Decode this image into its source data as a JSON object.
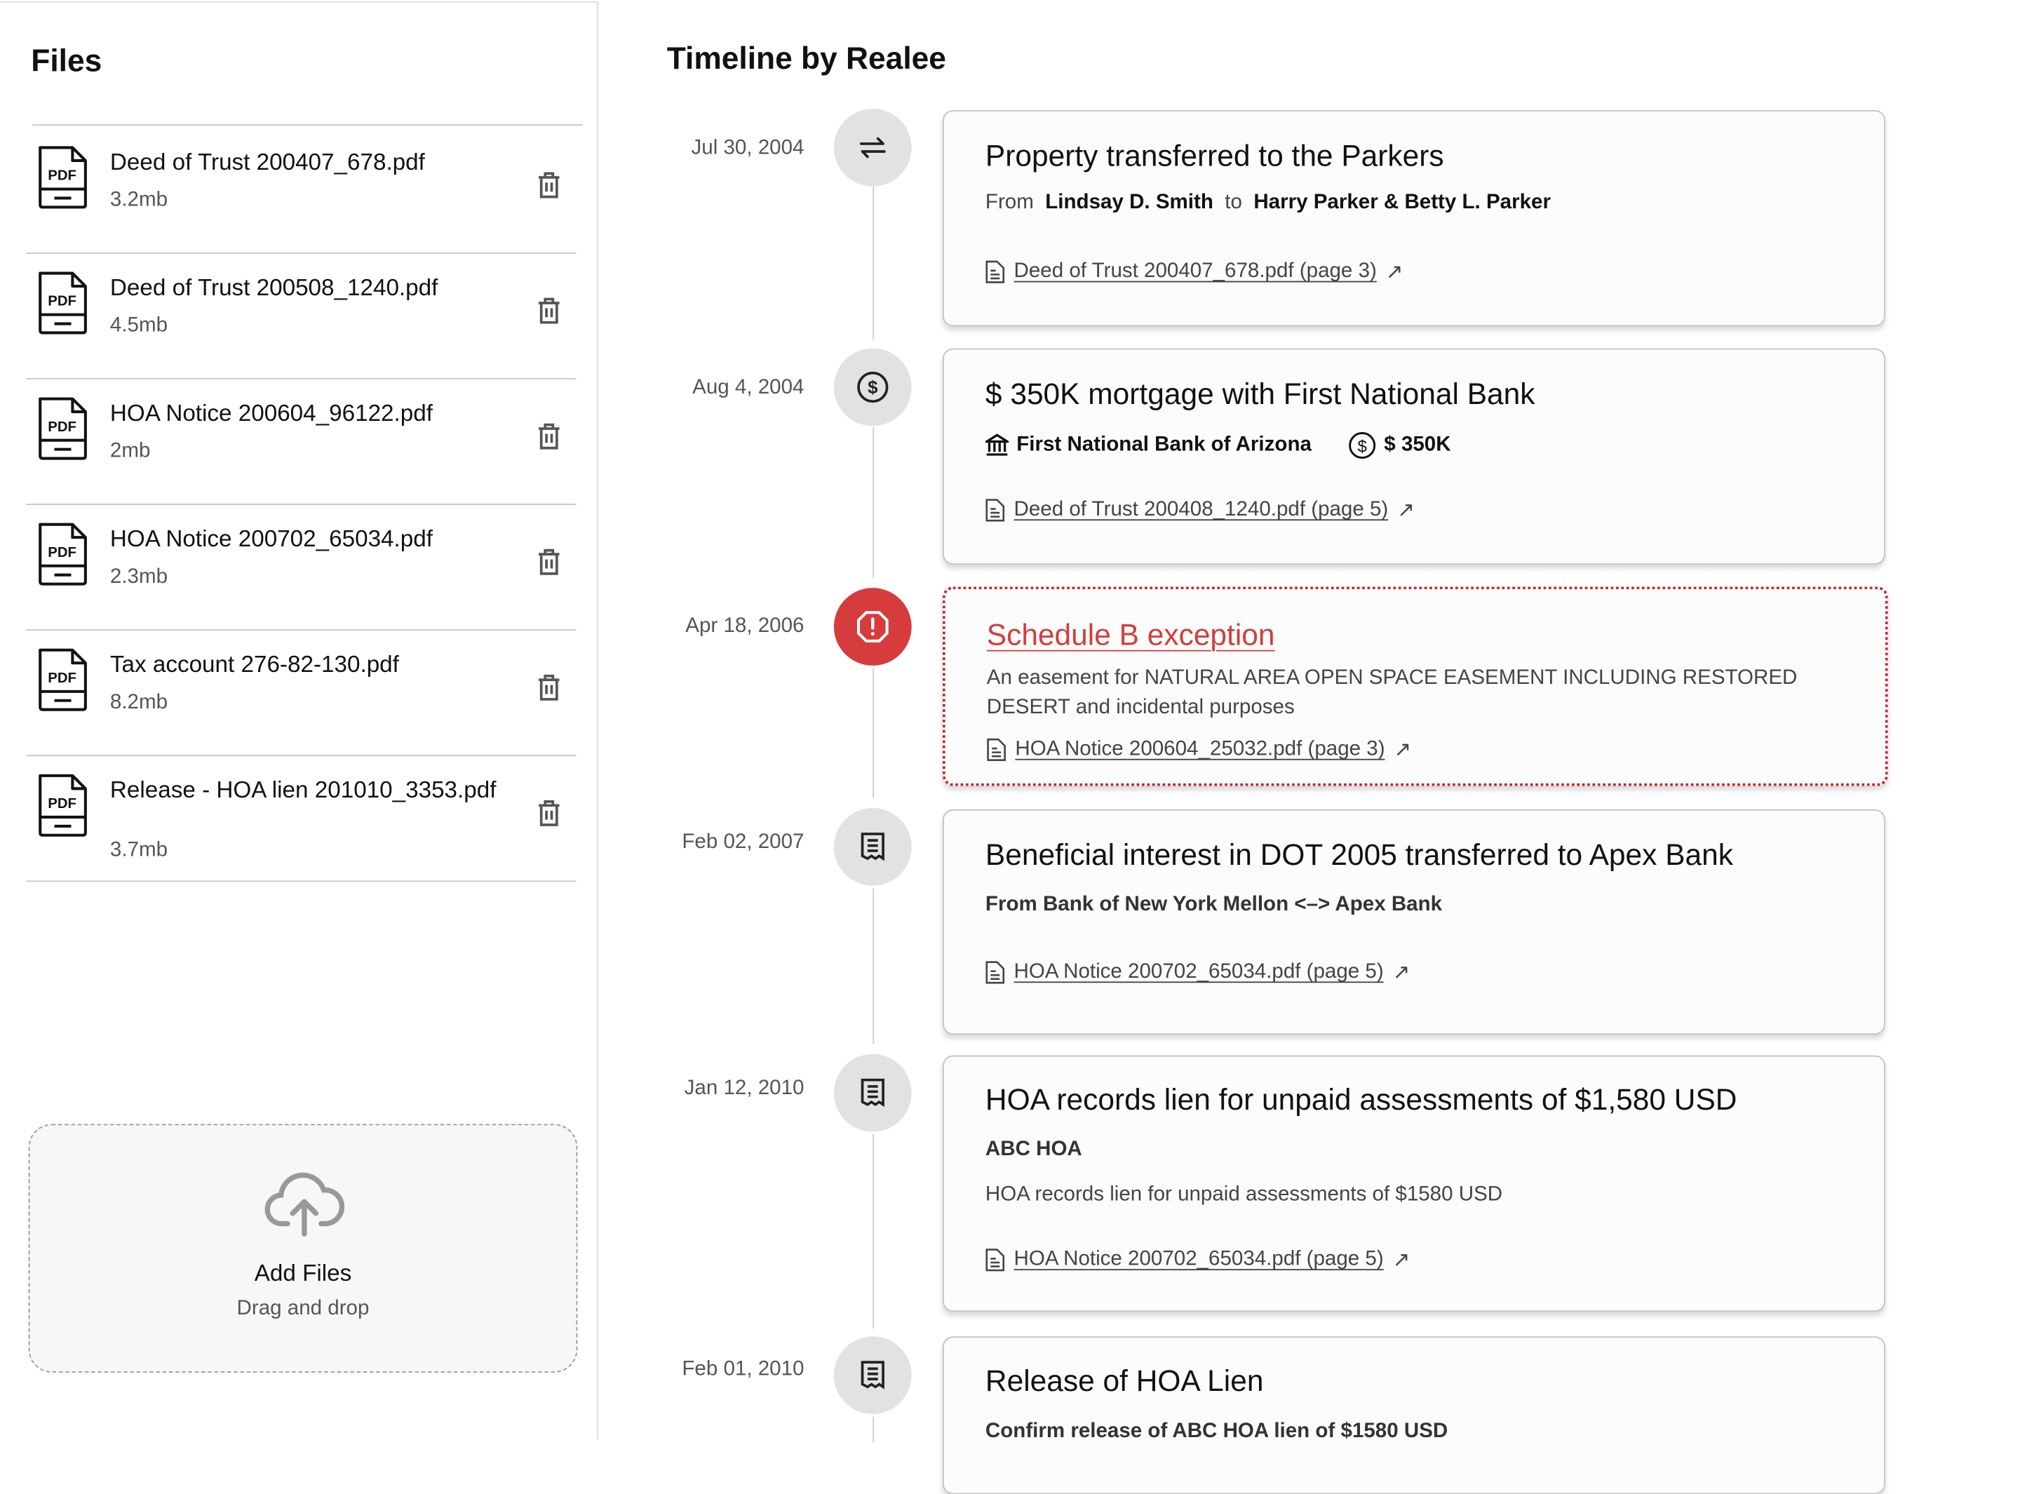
{
  "files_panel": {
    "title": "Files",
    "files": [
      {
        "name": "Deed of Trust 200407_678.pdf",
        "size": "3.2mb"
      },
      {
        "name": "Deed of Trust 200508_1240.pdf",
        "size": "4.5mb"
      },
      {
        "name": "HOA Notice 200604_96122.pdf",
        "size": "2mb"
      },
      {
        "name": "HOA Notice 200702_65034.pdf",
        "size": "2.3mb"
      },
      {
        "name": "Tax account 276-82-130.pdf",
        "size": "8.2mb"
      },
      {
        "name": "Release - HOA lien 201010_3353.pdf",
        "size": "3.7mb"
      }
    ],
    "file_icon_label": "PDF",
    "dropzone": {
      "title": "Add Files",
      "subtitle": "Drag and drop",
      "icon": "cloud-upload-icon"
    }
  },
  "timeline": {
    "title": "Timeline by Realee",
    "accent_color": "#d63c3c",
    "events": [
      {
        "date": "Jul 30, 2004",
        "icon": "transfer-arrows-icon",
        "title": "Property transferred to the Parkers",
        "from_label": "From",
        "from": "Lindsay D. Smith",
        "to_label": "to",
        "to": "Harry Parker & Betty L. Parker",
        "link": "Deed of Trust 200407_678.pdf (page 3)"
      },
      {
        "date": "Aug 4, 2004",
        "icon": "dollar-circle-icon",
        "title": "$ 350K mortgage with First National Bank",
        "bank": "First National Bank of Arizona",
        "amount": "$ 350K",
        "link": "Deed of Trust 200408_1240.pdf (page 5)"
      },
      {
        "date": "Apr 18, 2006",
        "icon": "alert-octagon-icon",
        "title": "Schedule B exception",
        "description": "An easement for NATURAL AREA OPEN SPACE EASEMENT INCLUDING RESTORED DESERT and incidental purposes",
        "link": "HOA Notice 200604_25032.pdf (page 3)"
      },
      {
        "date": "Feb 02, 2007",
        "icon": "receipt-icon",
        "title": "Beneficial interest in DOT 2005 transferred to Apex Bank",
        "from_text": "From Bank of New York Mellon",
        "arrow": "<–>",
        "to_text": "Apex Bank",
        "link": "HOA Notice 200702_65034.pdf (page 5)"
      },
      {
        "date": "Jan 12, 2010",
        "icon": "receipt-icon",
        "title": "HOA records lien for unpaid assessments of $1,580 USD",
        "party": "ABC HOA",
        "description": "HOA records lien for unpaid assessments of $1580 USD",
        "link": "HOA Notice 200702_65034.pdf (page 5)"
      },
      {
        "date": "Feb 01, 2010",
        "icon": "receipt-icon",
        "title": "Release of HOA Lien",
        "description": "Confirm release of ABC HOA lien of $1580 USD"
      }
    ]
  }
}
